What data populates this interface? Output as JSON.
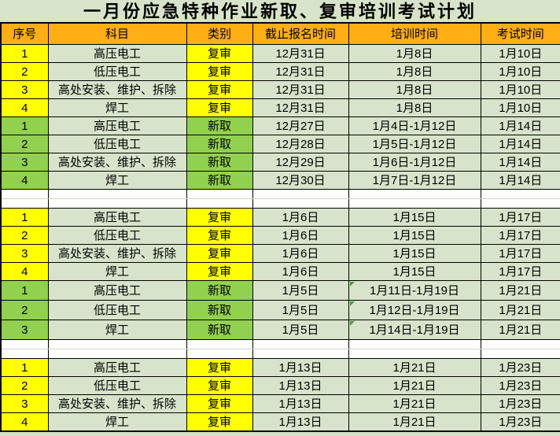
{
  "title": "一月份应急特种作业新取、复审培训考试计划",
  "colors": {
    "header_bg": "#FFAF14",
    "review_highlight": "#FFFF00",
    "new_highlight": "#92D050",
    "cell_bg": "#D7E4CB",
    "gap_bg": "#FFFFFF",
    "border": "#000000",
    "flag_green": "#4C9A3C"
  },
  "table": {
    "headers": [
      "序号",
      "科目",
      "类别",
      "截止报名时间",
      "培训时间",
      "考试时间"
    ],
    "sections": [
      {
        "style": "review",
        "rows": [
          {
            "no": "1",
            "subject": "高压电工",
            "category": "复审",
            "deadline": "12月31日",
            "training": "1月8日",
            "exam": "1月10日"
          },
          {
            "no": "2",
            "subject": "低压电工",
            "category": "复审",
            "deadline": "12月31日",
            "training": "1月8日",
            "exam": "1月10日"
          },
          {
            "no": "3",
            "subject": "高处安装、维护、拆除",
            "category": "复审",
            "deadline": "12月31日",
            "training": "1月8日",
            "exam": "1月10日"
          },
          {
            "no": "4",
            "subject": "焊工",
            "category": "复审",
            "deadline": "12月31日",
            "training": "1月8日",
            "exam": "1月10日"
          }
        ]
      },
      {
        "style": "new",
        "rows": [
          {
            "no": "1",
            "subject": "高压电工",
            "category": "新取",
            "deadline": "12月27日",
            "training": "1月4日-1月12日",
            "exam": "1月14日"
          },
          {
            "no": "2",
            "subject": "低压电工",
            "category": "新取",
            "deadline": "12月28日",
            "training": "1月5日-1月12日",
            "exam": "1月14日"
          },
          {
            "no": "3",
            "subject": "高处安装、维护、拆除",
            "category": "新取",
            "deadline": "12月29日",
            "training": "1月6日-1月12日",
            "exam": "1月14日"
          },
          {
            "no": "4",
            "subject": "焊工",
            "category": "新取",
            "deadline": "12月30日",
            "training": "1月7日-1月12日",
            "exam": "1月14日"
          }
        ]
      },
      {
        "gap": true
      },
      {
        "style": "review",
        "rows": [
          {
            "no": "1",
            "subject": "高压电工",
            "category": "复审",
            "deadline": "1月6日",
            "training": "1月15日",
            "exam": "1月17日"
          },
          {
            "no": "2",
            "subject": "低压电工",
            "category": "复审",
            "deadline": "1月6日",
            "training": "1月15日",
            "exam": "1月17日"
          },
          {
            "no": "3",
            "subject": "高处安装、维护、拆除",
            "category": "复审",
            "deadline": "1月6日",
            "training": "1月15日",
            "exam": "1月17日"
          },
          {
            "no": "4",
            "subject": "焊工",
            "category": "复审",
            "deadline": "1月6日",
            "training": "1月15日",
            "exam": "1月17日"
          }
        ]
      },
      {
        "style": "new",
        "rows": [
          {
            "no": "1",
            "subject": "高压电工",
            "category": "新取",
            "deadline": "1月5日",
            "training": "1月11日-1月19日",
            "exam": "1月21日",
            "flag": true
          },
          {
            "no": "2",
            "subject": "低压电工",
            "category": "新取",
            "deadline": "1月5日",
            "training": "1月12日-1月19日",
            "exam": "1月21日",
            "flag": true
          },
          {
            "no": "3",
            "subject": "焊工",
            "category": "新取",
            "deadline": "1月5日",
            "training": "1月14日-1月19日",
            "exam": "1月21日",
            "flag": true
          }
        ]
      },
      {
        "gap": true
      },
      {
        "style": "review",
        "rows": [
          {
            "no": "1",
            "subject": "高压电工",
            "category": "复审",
            "deadline": "1月13日",
            "training": "1月21日",
            "exam": "1月23日"
          },
          {
            "no": "2",
            "subject": "低压电工",
            "category": "复审",
            "deadline": "1月13日",
            "training": "1月21日",
            "exam": "1月23日"
          },
          {
            "no": "3",
            "subject": "高处安装、维护、拆除",
            "category": "复审",
            "deadline": "1月13日",
            "training": "1月21日",
            "exam": "1月23日"
          },
          {
            "no": "4",
            "subject": "焊工",
            "category": "复审",
            "deadline": "1月13日",
            "training": "1月21日",
            "exam": "1月23日"
          }
        ]
      }
    ]
  }
}
